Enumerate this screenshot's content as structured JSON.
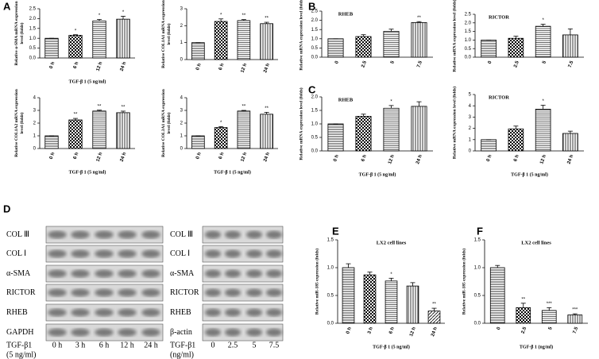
{
  "panels": [
    "A",
    "B",
    "C",
    "D",
    "E",
    "F"
  ],
  "chart_data": [
    {
      "type": "bar",
      "ylabel": [
        "Relative α-SMA mRNA expression",
        "level (folds)"
      ],
      "xlabel": "TGF-β 1 (5 ng/ml)",
      "categories": [
        "0 h",
        "6 h",
        "12 h",
        "24 h"
      ],
      "values": [
        1,
        1.15,
        1.88,
        1.97
      ],
      "errors": [
        0,
        0.03,
        0.08,
        0.15
      ],
      "annotations": [
        null,
        "*",
        "*",
        "*"
      ],
      "color": "#000000",
      "ylim": [
        0,
        2.5
      ],
      "yticks": [
        {
          "value": 0,
          "label": "0.0"
        },
        0.5,
        {
          "value": 1,
          "label": "1.0"
        },
        1.5,
        {
          "value": 2,
          "label": "2.0"
        },
        2.5
      ]
    },
    {
      "type": "bar",
      "ylabel": [
        "Relative COL1A1 mRNA expression",
        "level (folds)"
      ],
      "categories": [
        "0 h",
        "6 h",
        "12 h",
        "24 h"
      ],
      "values": [
        1,
        2.25,
        2.3,
        2.12
      ],
      "errors": [
        0,
        0.15,
        0.06,
        0.08
      ],
      "annotations": [
        null,
        "*",
        "**",
        "**"
      ],
      "color": "#000000",
      "ylim": [
        0,
        3
      ],
      "yticks": [
        0,
        1,
        2,
        3
      ]
    },
    {
      "type": "bar",
      "ylabel": [
        "Relative COL1A2 mRNA expression",
        "level (folds)"
      ],
      "xlabel": "TGF-β 1 (5 ng/ml)",
      "categories": [
        "0 h",
        "6 h",
        "12 h",
        "24 h"
      ],
      "values": [
        1,
        2.25,
        2.95,
        2.82
      ],
      "errors": [
        0,
        0.12,
        0.07,
        0.12
      ],
      "annotations": [
        null,
        "**",
        "**",
        "**"
      ],
      "color": "#000000",
      "ylim": [
        0,
        4
      ],
      "yticks": [
        0,
        1,
        2,
        3,
        4
      ]
    },
    {
      "type": "bar",
      "ylabel": [
        "Relative COL3A1 mRNA expression",
        "level (folds)"
      ],
      "xlabel": "TGF-β 1 (5 ng/ml)",
      "categories": [
        "0 h",
        "6 h",
        "12 h",
        "24 h"
      ],
      "values": [
        1,
        1.65,
        2.95,
        2.7
      ],
      "errors": [
        0,
        0.08,
        0.05,
        0.15
      ],
      "annotations": [
        null,
        "*",
        "**",
        "**"
      ],
      "color": "#000000",
      "ylim": [
        0,
        4
      ],
      "yticks": [
        0,
        1,
        2,
        3,
        4
      ]
    },
    {
      "type": "bar",
      "title": "RHEB",
      "ylabel": [
        "Relative mRNA expression level (folds)"
      ],
      "categories": [
        "0",
        "2.5",
        "5",
        "7.5"
      ],
      "values": [
        1,
        1.12,
        1.4,
        1.88
      ],
      "errors": [
        0,
        0.1,
        0.12,
        0.05
      ],
      "annotations": [
        null,
        null,
        null,
        "**"
      ],
      "color": "#000000",
      "ylim": [
        0,
        2.5
      ],
      "yticks": [
        {
          "value": 0,
          "label": "0.0"
        },
        0.5,
        {
          "value": 1,
          "label": "1.0"
        },
        1.5,
        {
          "value": 2,
          "label": "2.0"
        },
        2.5
      ]
    },
    {
      "type": "bar",
      "title": "RICTOR",
      "ylabel": [
        "Relative mRNA expression level (folds)"
      ],
      "categories": [
        "0",
        "2.5",
        "5",
        "7.5"
      ],
      "values": [
        1,
        1.1,
        1.8,
        1.3
      ],
      "errors": [
        0,
        0.12,
        0.12,
        0.35
      ],
      "annotations": [
        null,
        null,
        "*",
        null
      ],
      "color": "#000000",
      "ylim": [
        0,
        2.5
      ],
      "yticks": [
        {
          "value": 0,
          "label": "0.0"
        },
        0.5,
        {
          "value": 1,
          "label": "1.0"
        },
        1.5,
        {
          "value": 2,
          "label": "2.0"
        },
        2.5
      ]
    },
    {
      "type": "bar",
      "title": "RHEB",
      "ylabel": [
        "Relative mRNA expression level (folds)"
      ],
      "xlabel": "TGF-β 1 (5 ng/ml)",
      "categories": [
        "0 h",
        "6 h",
        "12 h",
        "24 h"
      ],
      "values": [
        1,
        1.28,
        1.58,
        1.65
      ],
      "errors": [
        0,
        0.08,
        0.1,
        0.17
      ],
      "annotations": [
        null,
        null,
        "*",
        null
      ],
      "color": "#000000",
      "ylim": [
        0,
        2
      ],
      "yticks": [
        {
          "value": 0,
          "label": "0.0"
        },
        0.5,
        {
          "value": 1,
          "label": "1.0"
        },
        1.5,
        {
          "value": 2,
          "label": "2.0"
        }
      ]
    },
    {
      "type": "bar",
      "title": "RICTOR",
      "ylabel": [
        "Relative mRNA expression level (folds)"
      ],
      "xlabel": "TGF-β 1 (5 ng/ml)",
      "categories": [
        "0 h",
        "6 h",
        "12 h",
        "24 h"
      ],
      "values": [
        1,
        1.95,
        3.7,
        1.55
      ],
      "errors": [
        0,
        0.25,
        0.35,
        0.2
      ],
      "annotations": [
        null,
        null,
        "*",
        null
      ],
      "color": "#000000",
      "ylim": [
        0,
        5
      ],
      "yticks": [
        0,
        1,
        2,
        3,
        4,
        5
      ]
    },
    {
      "type": "bar",
      "title": "LX2 cell lines",
      "ylabel": [
        "Relative miR-185 expression (folds)"
      ],
      "xlabel": "TGF-β 1 (5 ng/ml)",
      "categories": [
        "0 h",
        "3 h",
        "6 h",
        "12 h",
        "24 h"
      ],
      "values": [
        1,
        0.87,
        0.76,
        0.67,
        0.22
      ],
      "errors": [
        0.07,
        0.05,
        0.05,
        0.06,
        0.05
      ],
      "annotations": [
        null,
        null,
        "*",
        null,
        "**"
      ],
      "color": "#000000",
      "ylim": [
        0,
        1.5
      ],
      "yticks": [
        {
          "value": 0,
          "label": "0.0"
        },
        0.5,
        {
          "value": 1,
          "label": "1.0"
        },
        1.5
      ]
    },
    {
      "type": "bar",
      "title": "LX2 cell lines",
      "ylabel": [
        "Relative miR-185 expression (folds)"
      ],
      "xlabel": "TGF-β 1 (ng/ml)",
      "categories": [
        "0",
        "2.5",
        "5",
        "7.5"
      ],
      "values": [
        1,
        0.28,
        0.23,
        0.15
      ],
      "errors": [
        0.04,
        0.08,
        0.05,
        0.02
      ],
      "annotations": [
        null,
        "**",
        "***",
        "***"
      ],
      "color": "#000000",
      "ylim": [
        0,
        1.5
      ],
      "yticks": [
        {
          "value": 0,
          "label": "0.0"
        },
        0.5,
        {
          "value": 1,
          "label": "1.0"
        },
        1.5
      ]
    }
  ],
  "blots": [
    {
      "rows": [
        "COL Ⅲ",
        "COL Ⅰ",
        "α-SMA",
        "RICTOR",
        "RHEB",
        "GAPDH"
      ],
      "treatment": "TGF-β1",
      "dose": "(5 ng/ml)",
      "lanes": [
        "0 h",
        "3 h",
        "6 h",
        "12 h",
        "24 h"
      ]
    },
    {
      "rows": [
        "COL Ⅲ",
        "COL Ⅰ",
        "α-SMA",
        "RICTOR",
        "RHEB",
        "β-actin"
      ],
      "treatment": "TGF-β1",
      "dose": "(ng/ml)",
      "lanes": [
        "0",
        "2.5",
        "5",
        "7.5"
      ]
    }
  ]
}
